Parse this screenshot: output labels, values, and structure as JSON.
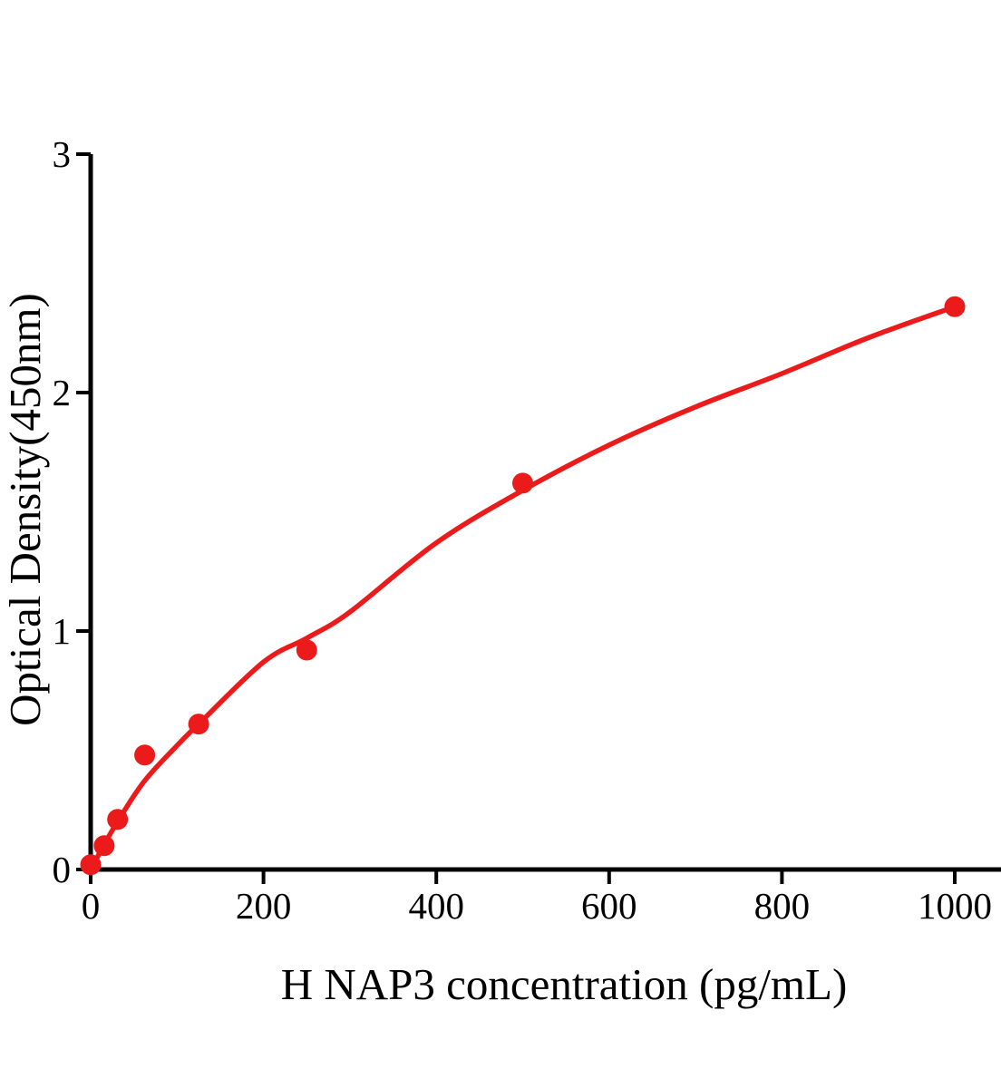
{
  "figure": {
    "background": "#ffffff"
  },
  "chart_data": {
    "type": "scatter",
    "title": "",
    "xlabel": "H NAP3 concentration (pg/mL)",
    "ylabel": "Optical Density(450nm)",
    "x_ticks": [
      "0",
      "200",
      "400",
      "600",
      "800",
      "1000"
    ],
    "x_tick_values": [
      0,
      200,
      400,
      600,
      800,
      1000
    ],
    "y_ticks": [
      "0",
      "1",
      "2",
      "3"
    ],
    "y_tick_values": [
      0,
      1,
      2,
      3
    ],
    "xlim": [
      0,
      1055
    ],
    "ylim": [
      0,
      3
    ],
    "grid": false,
    "legend": "none",
    "axis_color": "#000000",
    "accent_color": "#ec1b1b",
    "series": [
      {
        "name": "standard-points",
        "type": "scatter",
        "color": "#ec1b1b",
        "marker": "circle",
        "points": [
          {
            "x": 0,
            "y": 0.02
          },
          {
            "x": 15.6,
            "y": 0.1
          },
          {
            "x": 31.2,
            "y": 0.21
          },
          {
            "x": 62.5,
            "y": 0.48
          },
          {
            "x": 125,
            "y": 0.61
          },
          {
            "x": 250,
            "y": 0.92
          },
          {
            "x": 500,
            "y": 1.62
          },
          {
            "x": 1000,
            "y": 2.36
          }
        ]
      },
      {
        "name": "fitted-curve",
        "type": "line",
        "color": "#ec1b1b",
        "points": [
          {
            "x": 0,
            "y": 0.0
          },
          {
            "x": 15,
            "y": 0.1
          },
          {
            "x": 31,
            "y": 0.2
          },
          {
            "x": 62,
            "y": 0.37
          },
          {
            "x": 100,
            "y": 0.52
          },
          {
            "x": 125,
            "y": 0.61
          },
          {
            "x": 200,
            "y": 0.87
          },
          {
            "x": 250,
            "y": 0.97
          },
          {
            "x": 300,
            "y": 1.08
          },
          {
            "x": 400,
            "y": 1.37
          },
          {
            "x": 500,
            "y": 1.59
          },
          {
            "x": 600,
            "y": 1.78
          },
          {
            "x": 700,
            "y": 1.94
          },
          {
            "x": 800,
            "y": 2.08
          },
          {
            "x": 900,
            "y": 2.23
          },
          {
            "x": 1000,
            "y": 2.36
          }
        ]
      }
    ]
  }
}
